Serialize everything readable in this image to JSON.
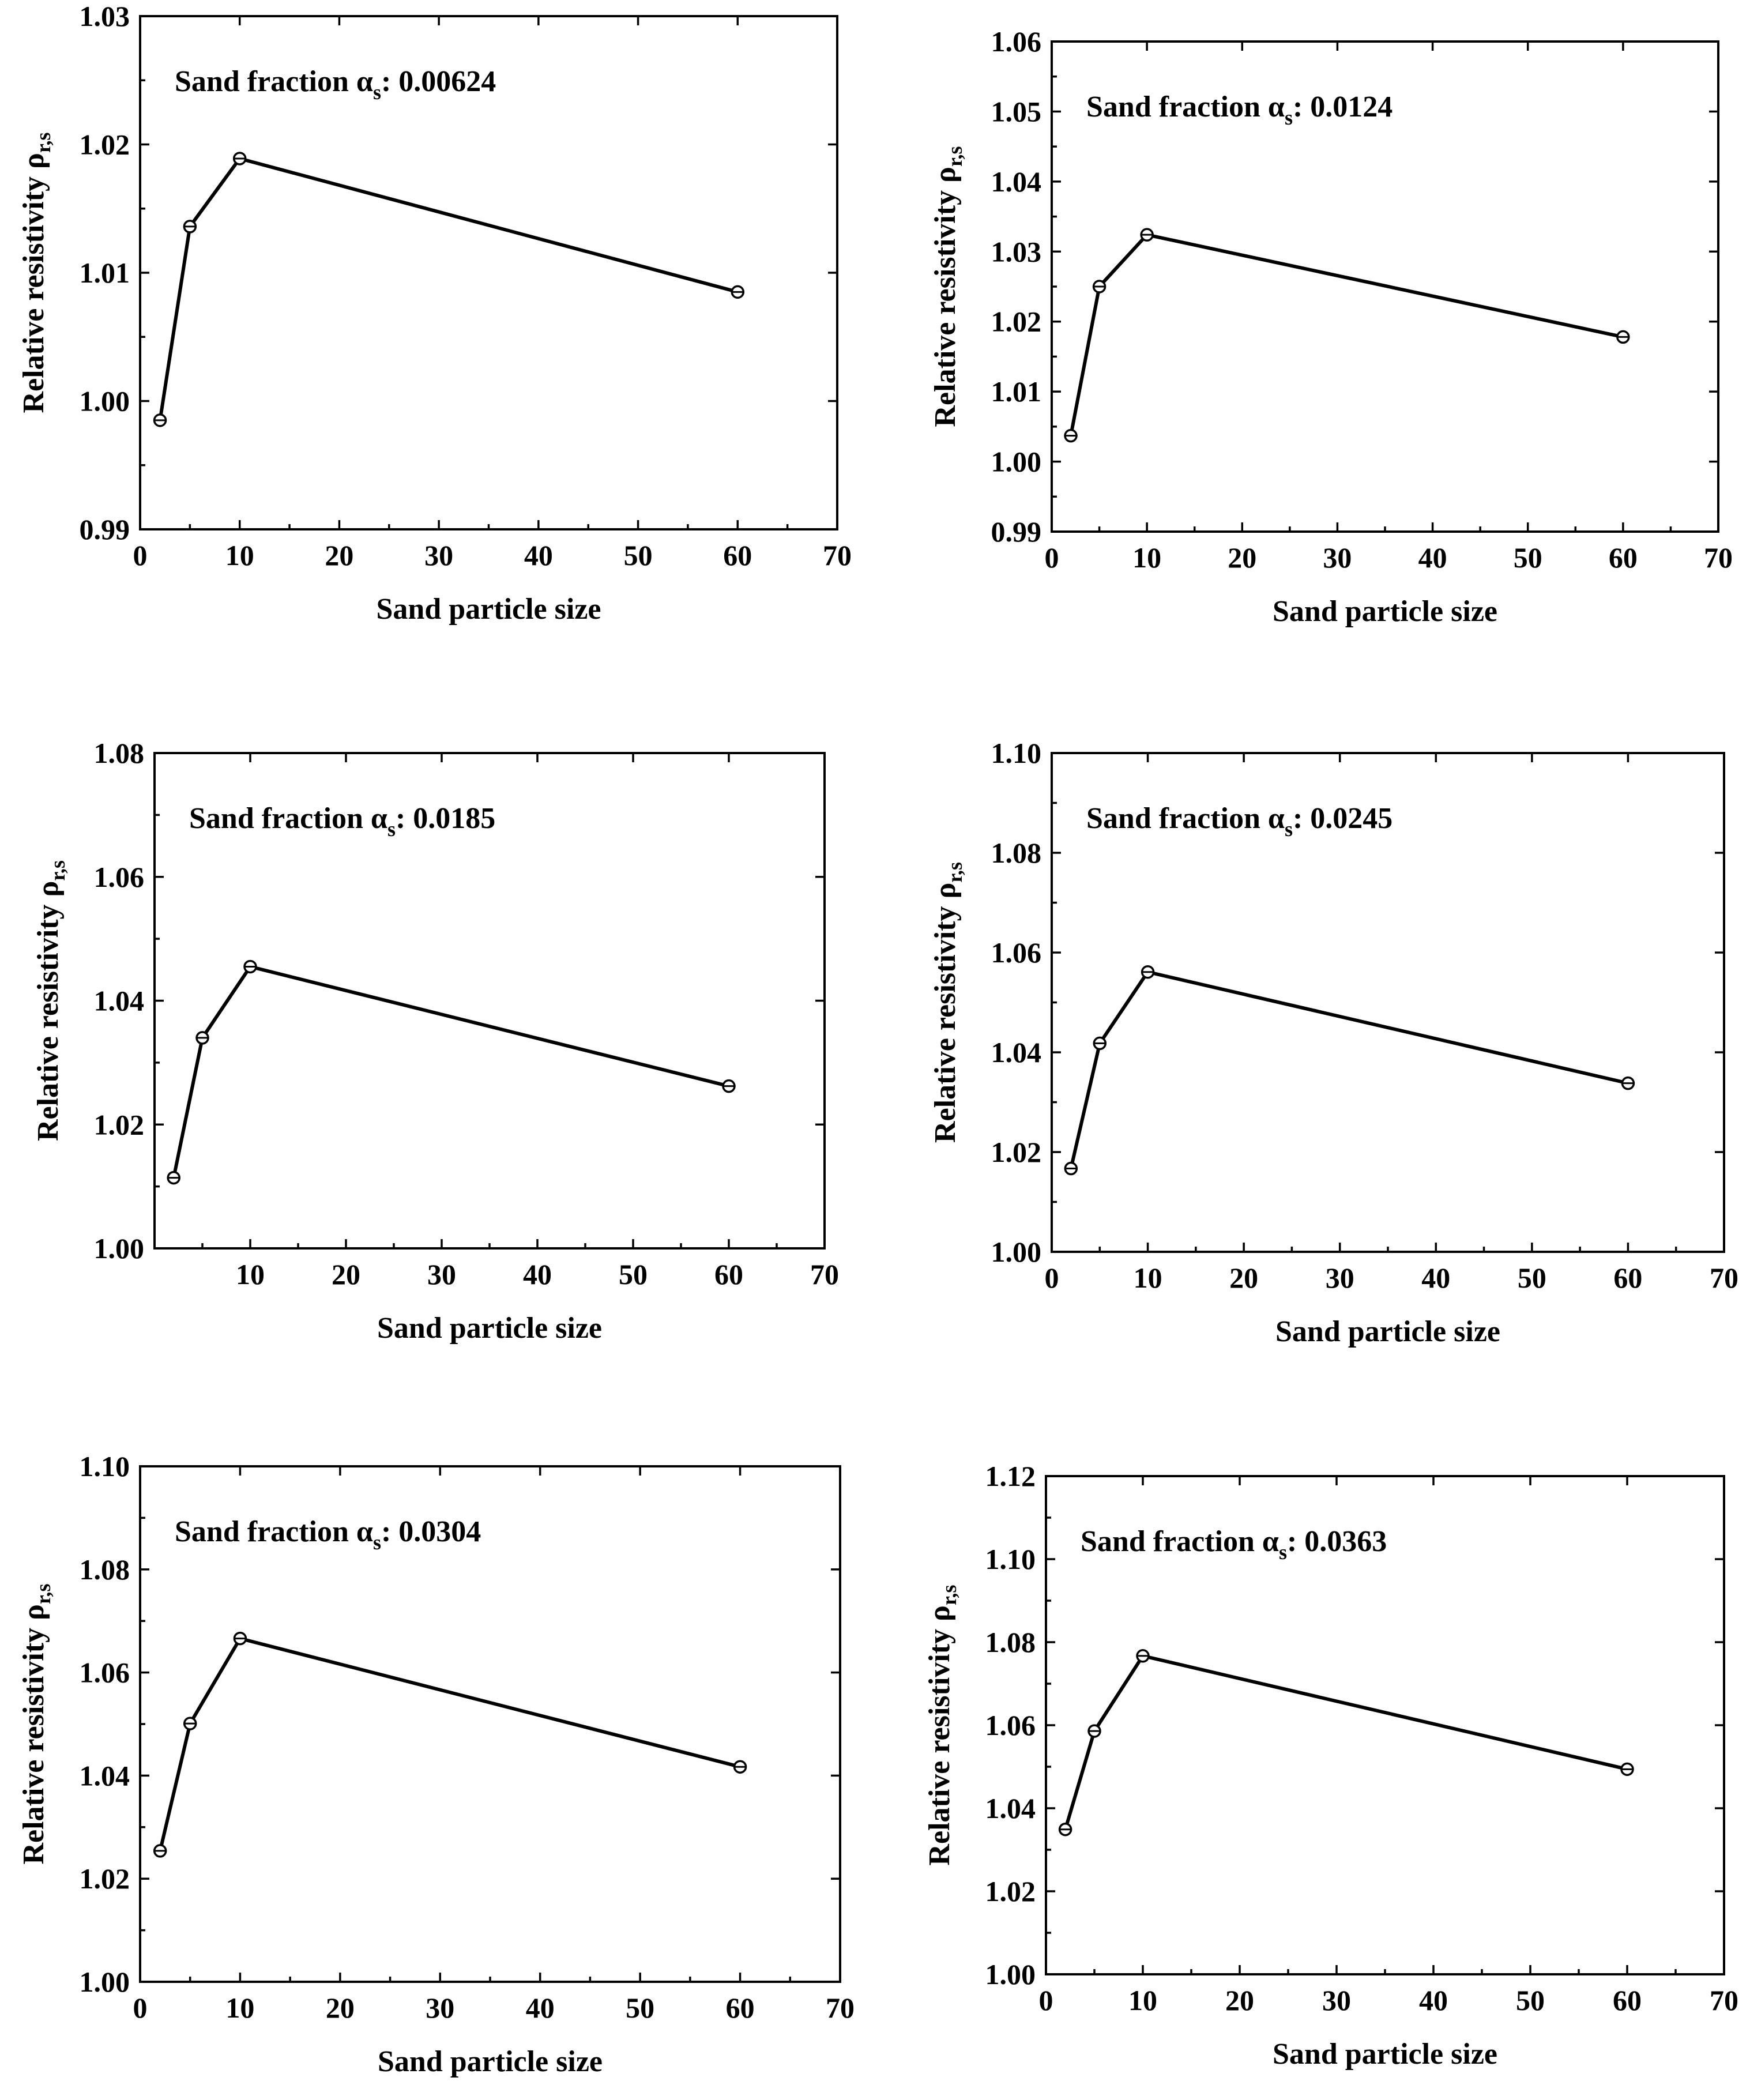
{
  "chart_data": [
    {
      "type": "line",
      "title": "",
      "annotation": {
        "prefix": "Sand fraction α",
        "subscript": "s",
        "suffix": ": 0.00624"
      },
      "xlabel": "Sand particle size",
      "ylabel": {
        "main": "Relative resistivity ρ",
        "subscript": "r,s"
      },
      "xlim": [
        0,
        70
      ],
      "ylim": [
        0.99,
        1.03
      ],
      "xticks": [
        "0",
        "10",
        "20",
        "30",
        "40",
        "50",
        "60",
        "70"
      ],
      "yticks": [
        "0.99",
        "1.00",
        "1.01",
        "1.02",
        "1.03"
      ],
      "series": [
        {
          "name": "ρr,s",
          "x": [
            2,
            5,
            10,
            60
          ],
          "y": [
            0.9985,
            1.0136,
            1.0189,
            1.0085
          ],
          "err": [
            0.0005,
            0.0005,
            0.0005,
            0.0005
          ]
        }
      ]
    },
    {
      "type": "line",
      "title": "",
      "annotation": {
        "prefix": "Sand fraction α",
        "subscript": "s",
        "suffix": ": 0.0124"
      },
      "xlabel": "Sand particle size",
      "ylabel": {
        "main": "Relative resistivity ρ",
        "subscript": "r,s"
      },
      "xlim": [
        0,
        70
      ],
      "ylim": [
        0.99,
        1.06
      ],
      "xticks": [
        "0",
        "10",
        "20",
        "30",
        "40",
        "50",
        "60",
        "70"
      ],
      "yticks": [
        "0.99",
        "1.00",
        "1.01",
        "1.02",
        "1.03",
        "1.04",
        "1.05",
        "1.06"
      ],
      "series": [
        {
          "name": "ρr,s",
          "x": [
            2,
            5,
            10,
            60
          ],
          "y": [
            1.0037,
            1.025,
            1.0324,
            1.0178
          ],
          "err": [
            0.0005,
            0.0005,
            0.0005,
            0.0005
          ]
        }
      ]
    },
    {
      "type": "line",
      "title": "",
      "annotation": {
        "prefix": "Sand fraction α",
        "subscript": "s",
        "suffix": ": 0.0185"
      },
      "xlabel": "Sand particle size",
      "ylabel": {
        "main": "Relative resistivity ρ",
        "subscript": "r,s"
      },
      "xlim": [
        0,
        70
      ],
      "ylim": [
        1.0,
        1.08
      ],
      "xticks": [
        "",
        "10",
        "20",
        "30",
        "40",
        "50",
        "60",
        "70"
      ],
      "yticks": [
        "1.00",
        "1.02",
        "1.04",
        "1.06",
        "1.08"
      ],
      "series": [
        {
          "name": "ρr,s",
          "x": [
            2,
            5,
            10,
            60
          ],
          "y": [
            1.0114,
            1.034,
            1.0455,
            1.0262
          ],
          "err": [
            0.0006,
            0.0006,
            0.0006,
            0.0006
          ]
        }
      ]
    },
    {
      "type": "line",
      "title": "",
      "annotation": {
        "prefix": "Sand fraction α",
        "subscript": "s",
        "suffix": ": 0.0245"
      },
      "xlabel": "Sand particle size",
      "ylabel": {
        "main": "Relative resistivity ρ",
        "subscript": "r,s"
      },
      "xlim": [
        0,
        70
      ],
      "ylim": [
        1.0,
        1.1
      ],
      "xticks": [
        "0",
        "10",
        "20",
        "30",
        "40",
        "50",
        "60",
        "70"
      ],
      "yticks": [
        "1.00",
        "1.02",
        "1.04",
        "1.06",
        "1.08",
        "1.10"
      ],
      "series": [
        {
          "name": "ρr,s",
          "x": [
            2,
            5,
            10,
            60
          ],
          "y": [
            1.0167,
            1.0418,
            1.0561,
            1.0338
          ],
          "err": [
            0.0007,
            0.0007,
            0.0007,
            0.0007
          ]
        }
      ]
    },
    {
      "type": "line",
      "title": "",
      "annotation": {
        "prefix": "Sand fraction α",
        "subscript": "s",
        "suffix": ": 0.0304"
      },
      "xlabel": "Sand particle size",
      "ylabel": {
        "main": "Relative resistivity ρ",
        "subscript": "r,s"
      },
      "xlim": [
        0,
        70
      ],
      "ylim": [
        1.0,
        1.1
      ],
      "xticks": [
        "0",
        "10",
        "20",
        "30",
        "40",
        "50",
        "60",
        "70"
      ],
      "yticks": [
        "1.00",
        "1.02",
        "1.04",
        "1.06",
        "1.08",
        "1.10"
      ],
      "series": [
        {
          "name": "ρr,s",
          "x": [
            2,
            5,
            10,
            60
          ],
          "y": [
            1.0254,
            1.0501,
            1.0666,
            1.0417
          ],
          "err": [
            0.0008,
            0.0008,
            0.0008,
            0.0008
          ]
        }
      ]
    },
    {
      "type": "line",
      "title": "",
      "annotation": {
        "prefix": "Sand fraction α",
        "subscript": "s",
        "suffix": ": 0.0363"
      },
      "xlabel": "Sand particle size",
      "ylabel": {
        "main": "Relative resistivity ρ",
        "subscript": "r,s"
      },
      "xlim": [
        0,
        70
      ],
      "ylim": [
        1.0,
        1.12
      ],
      "xticks": [
        "0",
        "10",
        "20",
        "30",
        "40",
        "50",
        "60",
        "70"
      ],
      "yticks": [
        "1.00",
        "1.02",
        "1.04",
        "1.06",
        "1.08",
        "1.10",
        "1.12"
      ],
      "series": [
        {
          "name": "ρr,s",
          "x": [
            2,
            5,
            10,
            60
          ],
          "y": [
            1.0349,
            1.0586,
            1.0767,
            1.0494
          ],
          "err": [
            0.0008,
            0.0008,
            0.0008,
            0.0008
          ]
        }
      ]
    }
  ]
}
